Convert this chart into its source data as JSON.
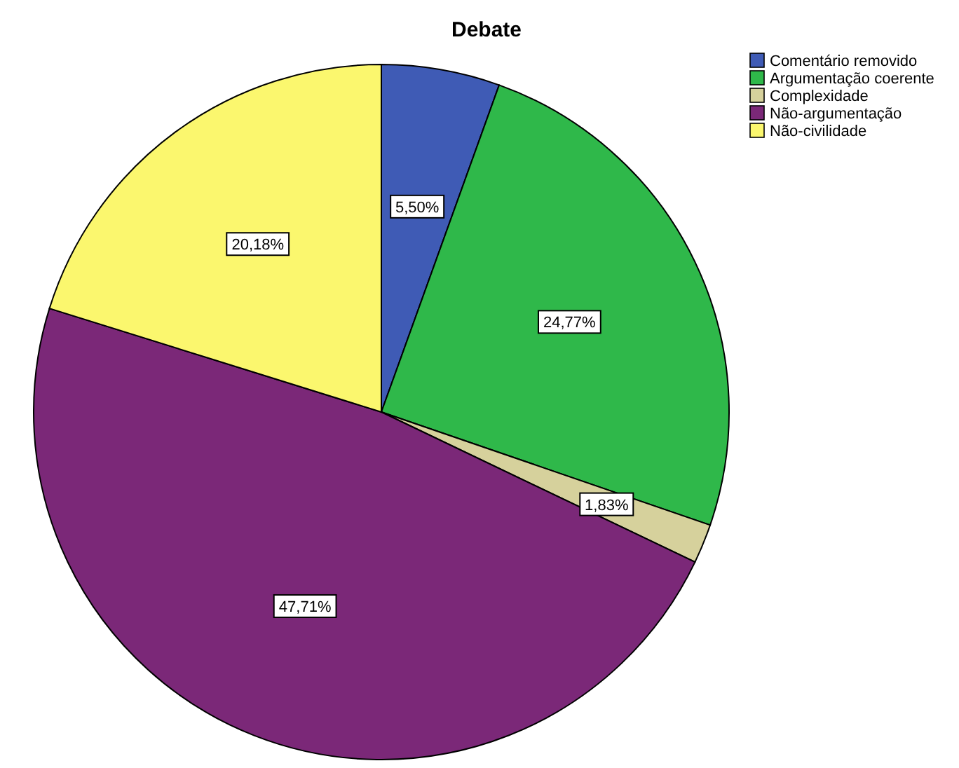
{
  "chart_data": {
    "type": "pie",
    "title": "Debate",
    "categories": [
      "Comentário removido",
      "Argumentação coerente",
      "Complexidade",
      "Não-argumentação",
      "Não-civilidade"
    ],
    "values": [
      5.5,
      24.77,
      1.83,
      47.71,
      20.18
    ],
    "colors": [
      "#3f5bb5",
      "#2fb84a",
      "#d6d19c",
      "#7b2878",
      "#fbf76e"
    ],
    "value_labels": [
      "5,50%",
      "24,77%",
      "1,83%",
      "47,71%",
      "20,18%"
    ],
    "legend": "top right"
  }
}
